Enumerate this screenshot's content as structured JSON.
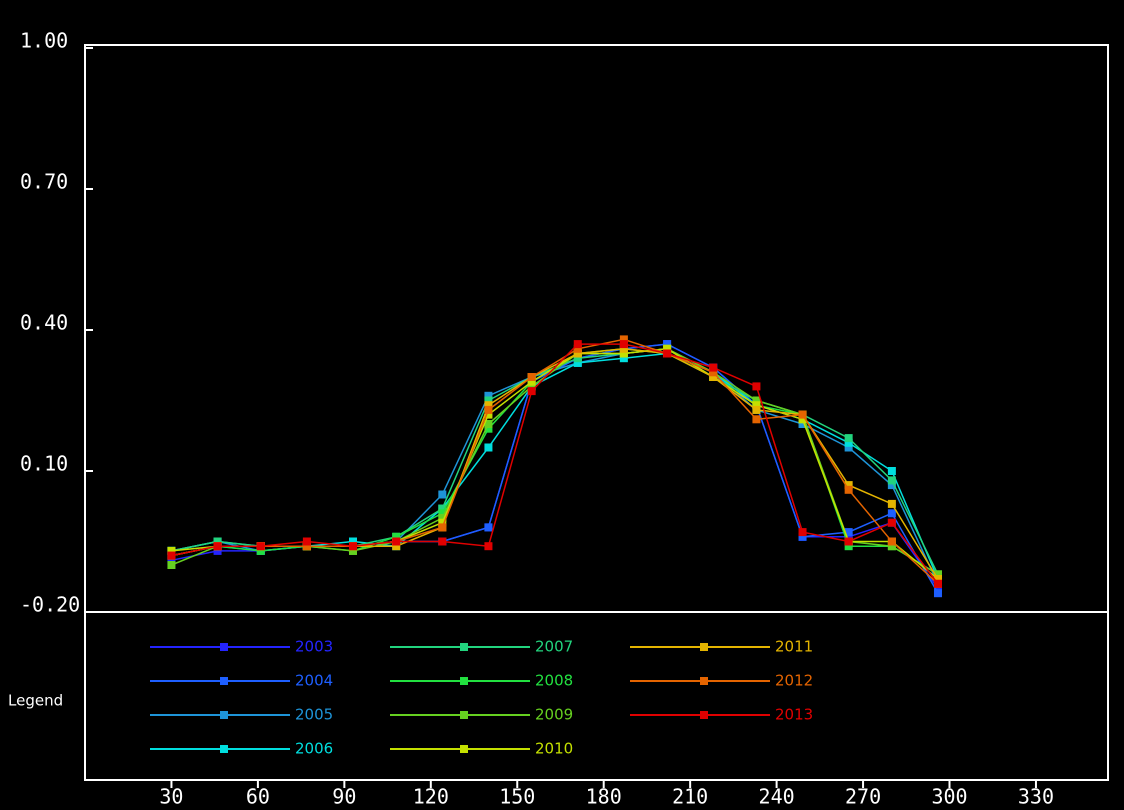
{
  "chart_data": {
    "type": "line",
    "legend_title": "Legend",
    "x": [
      30,
      46,
      61,
      77,
      93,
      108,
      124,
      140,
      155,
      171,
      187,
      202,
      218,
      233,
      249,
      265,
      280,
      296
    ],
    "xlim": [
      0,
      355
    ],
    "xticks": [
      30,
      60,
      90,
      120,
      150,
      180,
      210,
      240,
      270,
      300,
      330
    ],
    "ylim": [
      -0.2,
      1.0
    ],
    "yticks": [
      {
        "value": 1.0,
        "label": "1.00"
      },
      {
        "value": 0.7,
        "label": "0.70"
      },
      {
        "value": 0.4,
        "label": "0.40"
      },
      {
        "value": 0.1,
        "label": "0.10"
      },
      {
        "value": -0.2,
        "label": "-0.20"
      }
    ],
    "series": [
      {
        "name": "2003",
        "color": "#2424ff",
        "values": [
          -0.09,
          -0.07,
          -0.07,
          -0.06,
          -0.06,
          -0.05,
          -0.05,
          -0.02,
          0.29,
          0.34,
          0.36,
          0.37,
          0.32,
          0.24,
          -0.04,
          -0.04,
          -0.01,
          -0.15
        ]
      },
      {
        "name": "2004",
        "color": "#1e5fff",
        "values": [
          -0.08,
          -0.06,
          -0.07,
          -0.06,
          -0.06,
          -0.05,
          -0.05,
          -0.02,
          0.29,
          0.34,
          0.36,
          0.37,
          0.32,
          0.24,
          -0.04,
          -0.03,
          0.01,
          -0.16
        ]
      },
      {
        "name": "2005",
        "color": "#1e94d8",
        "values": [
          -0.07,
          -0.05,
          -0.07,
          -0.06,
          -0.06,
          -0.05,
          0.05,
          0.26,
          0.3,
          0.33,
          0.35,
          0.36,
          0.31,
          0.23,
          0.2,
          0.15,
          0.07,
          -0.14
        ]
      },
      {
        "name": "2006",
        "color": "#00dede",
        "values": [
          -0.07,
          -0.05,
          -0.06,
          -0.06,
          -0.05,
          -0.06,
          0.02,
          0.15,
          0.28,
          0.33,
          0.34,
          0.35,
          0.31,
          0.24,
          0.21,
          0.16,
          0.1,
          -0.13
        ]
      },
      {
        "name": "2007",
        "color": "#22d47e",
        "values": [
          -0.07,
          -0.05,
          -0.06,
          -0.06,
          -0.06,
          -0.04,
          0.02,
          0.25,
          0.3,
          0.34,
          0.35,
          0.36,
          0.3,
          0.25,
          0.22,
          0.17,
          0.08,
          -0.12
        ]
      },
      {
        "name": "2008",
        "color": "#22e040",
        "values": [
          -0.08,
          -0.06,
          -0.07,
          -0.06,
          -0.07,
          -0.04,
          0.01,
          0.19,
          0.29,
          0.35,
          0.36,
          0.35,
          0.3,
          0.24,
          0.22,
          -0.06,
          -0.06,
          -0.12
        ]
      },
      {
        "name": "2009",
        "color": "#66d020",
        "values": [
          -0.1,
          -0.06,
          -0.06,
          -0.06,
          -0.07,
          -0.05,
          0.0,
          0.2,
          0.28,
          0.35,
          0.35,
          0.36,
          0.31,
          0.25,
          0.22,
          -0.05,
          -0.06,
          -0.12
        ]
      },
      {
        "name": "2010",
        "color": "#c4e000",
        "values": [
          -0.07,
          -0.06,
          -0.06,
          -0.06,
          -0.06,
          -0.05,
          -0.01,
          0.22,
          0.29,
          0.35,
          0.35,
          0.36,
          0.3,
          0.24,
          0.21,
          -0.05,
          -0.05,
          -0.13
        ]
      },
      {
        "name": "2011",
        "color": "#e4b400",
        "values": [
          -0.08,
          -0.06,
          -0.06,
          -0.06,
          -0.06,
          -0.06,
          -0.02,
          0.24,
          0.3,
          0.35,
          0.36,
          0.35,
          0.3,
          0.23,
          0.22,
          0.07,
          0.03,
          -0.13
        ]
      },
      {
        "name": "2012",
        "color": "#e46400",
        "values": [
          -0.08,
          -0.06,
          -0.06,
          -0.06,
          -0.06,
          -0.05,
          -0.02,
          0.23,
          0.3,
          0.36,
          0.38,
          0.35,
          0.31,
          0.21,
          0.22,
          0.06,
          -0.05,
          -0.14
        ]
      },
      {
        "name": "2013",
        "color": "#e00000",
        "values": [
          -0.08,
          -0.06,
          -0.06,
          -0.05,
          -0.06,
          -0.05,
          -0.05,
          -0.06,
          0.27,
          0.37,
          0.37,
          0.35,
          0.32,
          0.28,
          -0.03,
          -0.05,
          -0.01,
          -0.14
        ]
      }
    ]
  }
}
